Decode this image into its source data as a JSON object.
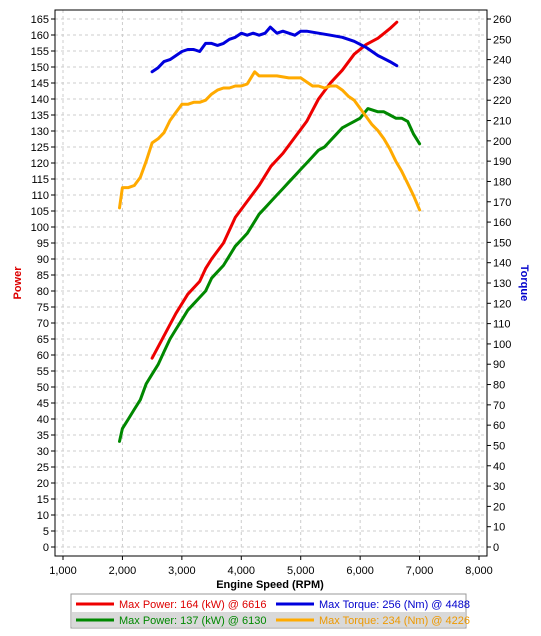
{
  "chart_data": {
    "type": "line",
    "xlabel": "Engine Speed (RPM)",
    "ylabel_left": "Power",
    "ylabel_right": "Torque",
    "left_axis_color": "#dd0000",
    "right_axis_color": "#0000cc",
    "xlim": [
      1000,
      8000
    ],
    "ylim_left": [
      0,
      165
    ],
    "ylim_right": [
      0,
      260
    ],
    "x_ticks": [
      1000,
      2000,
      3000,
      4000,
      5000,
      6000,
      7000,
      8000
    ],
    "x_tick_labels": [
      "1,000",
      "2,000",
      "3,000",
      "4,000",
      "5,000",
      "6,000",
      "7,000",
      "8,000"
    ],
    "y_left_ticks": [
      0,
      5,
      10,
      15,
      20,
      25,
      30,
      35,
      40,
      45,
      50,
      55,
      60,
      65,
      70,
      75,
      80,
      85,
      90,
      95,
      100,
      105,
      110,
      115,
      120,
      125,
      130,
      135,
      140,
      145,
      150,
      155,
      160,
      165
    ],
    "y_right_ticks": [
      0,
      10,
      20,
      30,
      40,
      50,
      60,
      70,
      80,
      90,
      100,
      110,
      120,
      130,
      140,
      150,
      160,
      170,
      180,
      190,
      200,
      210,
      220,
      230,
      240,
      250,
      260
    ],
    "grid": true,
    "series": [
      {
        "name": "Max Power: 164 (kW) @ 6616",
        "axis": "left",
        "color": "#ee0000",
        "x": [
          2500,
          2700,
          2900,
          3100,
          3300,
          3400,
          3500,
          3700,
          3900,
          4100,
          4300,
          4500,
          4700,
          4900,
          5100,
          5300,
          5500,
          5700,
          5900,
          6100,
          6300,
          6500,
          6616
        ],
        "y": [
          59,
          66,
          73,
          79,
          83,
          87,
          90,
          95,
          103,
          108,
          113,
          119,
          123,
          128,
          133,
          140,
          145,
          149,
          154,
          157,
          159,
          162,
          164
        ]
      },
      {
        "name": "Max Torque: 256 (Nm) @ 4488",
        "axis": "right",
        "color": "#0000dd",
        "x": [
          2500,
          2600,
          2700,
          2800,
          2900,
          3000,
          3100,
          3200,
          3300,
          3400,
          3500,
          3600,
          3700,
          3800,
          3900,
          4000,
          4100,
          4200,
          4300,
          4400,
          4488,
          4600,
          4700,
          4800,
          4900,
          5000,
          5100,
          5300,
          5500,
          5700,
          5900,
          6100,
          6300,
          6500,
          6616
        ],
        "y": [
          234,
          236,
          239,
          240,
          242,
          244,
          245,
          245,
          244,
          248,
          248,
          247,
          248,
          250,
          251,
          253,
          252,
          253,
          252,
          253,
          256,
          253,
          254,
          253,
          252,
          254,
          254,
          253,
          252,
          251,
          249,
          246,
          242,
          239,
          237
        ]
      },
      {
        "name": "Max Power: 137 (kW) @ 6130",
        "axis": "left",
        "color": "#008800",
        "x": [
          1950,
          2000,
          2100,
          2200,
          2300,
          2400,
          2500,
          2600,
          2700,
          2800,
          2900,
          3000,
          3100,
          3200,
          3300,
          3400,
          3500,
          3600,
          3700,
          3800,
          3900,
          4000,
          4100,
          4200,
          4300,
          4400,
          4500,
          4600,
          4700,
          4800,
          4900,
          5000,
          5100,
          5200,
          5300,
          5400,
          5500,
          5600,
          5700,
          5800,
          5900,
          6000,
          6130,
          6300,
          6400,
          6500,
          6600,
          6700,
          6800,
          6900,
          7000
        ],
        "y": [
          33,
          37,
          40,
          43,
          46,
          51,
          54,
          57,
          61,
          65,
          68,
          71,
          74,
          76,
          78,
          80,
          84,
          86,
          88,
          91,
          94,
          96,
          98,
          101,
          104,
          106,
          108,
          110,
          112,
          114,
          116,
          118,
          120,
          122,
          124,
          125,
          127,
          129,
          131,
          132,
          133,
          134,
          137,
          136,
          136,
          135,
          134,
          134,
          133,
          129,
          126
        ]
      },
      {
        "name": "Max Torque: 234 (Nm) @ 4226",
        "axis": "right",
        "color": "#ffaa00",
        "x": [
          1950,
          2000,
          2100,
          2200,
          2300,
          2400,
          2500,
          2600,
          2700,
          2800,
          2900,
          3000,
          3100,
          3200,
          3300,
          3400,
          3500,
          3600,
          3700,
          3800,
          3900,
          4000,
          4100,
          4226,
          4300,
          4400,
          4600,
          4800,
          5000,
          5100,
          5200,
          5300,
          5400,
          5500,
          5600,
          5700,
          5800,
          5900,
          6000,
          6100,
          6200,
          6300,
          6400,
          6500,
          6600,
          6700,
          6800,
          6900,
          7000
        ],
        "y": [
          167,
          177,
          177,
          178,
          182,
          190,
          199,
          201,
          204,
          210,
          214,
          218,
          218,
          219,
          219,
          220,
          223,
          225,
          226,
          226,
          227,
          227,
          228,
          234,
          232,
          232,
          232,
          231,
          231,
          229,
          227,
          227,
          226,
          227,
          227,
          225,
          222,
          220,
          216,
          212,
          208,
          205,
          201,
          196,
          190,
          185,
          179,
          173,
          166
        ]
      }
    ],
    "legend": {
      "placement": "bottom",
      "entries": [
        {
          "label": "Max Power: 164 (kW) @ 6616",
          "color": "#ee0000",
          "text_color": "#dd0000",
          "column": 0,
          "row": 0
        },
        {
          "label": "Max Torque: 256 (Nm) @ 4488",
          "color": "#0000dd",
          "text_color": "#0000cc",
          "column": 1,
          "row": 0
        },
        {
          "label": "Max Power: 137 (kW) @ 6130",
          "color": "#008800",
          "text_color": "#008800",
          "column": 0,
          "row": 1
        },
        {
          "label": "Max Torque: 234 (Nm) @ 4226",
          "color": "#ffaa00",
          "text_color": "#ee9900",
          "column": 1,
          "row": 1
        }
      ]
    }
  }
}
